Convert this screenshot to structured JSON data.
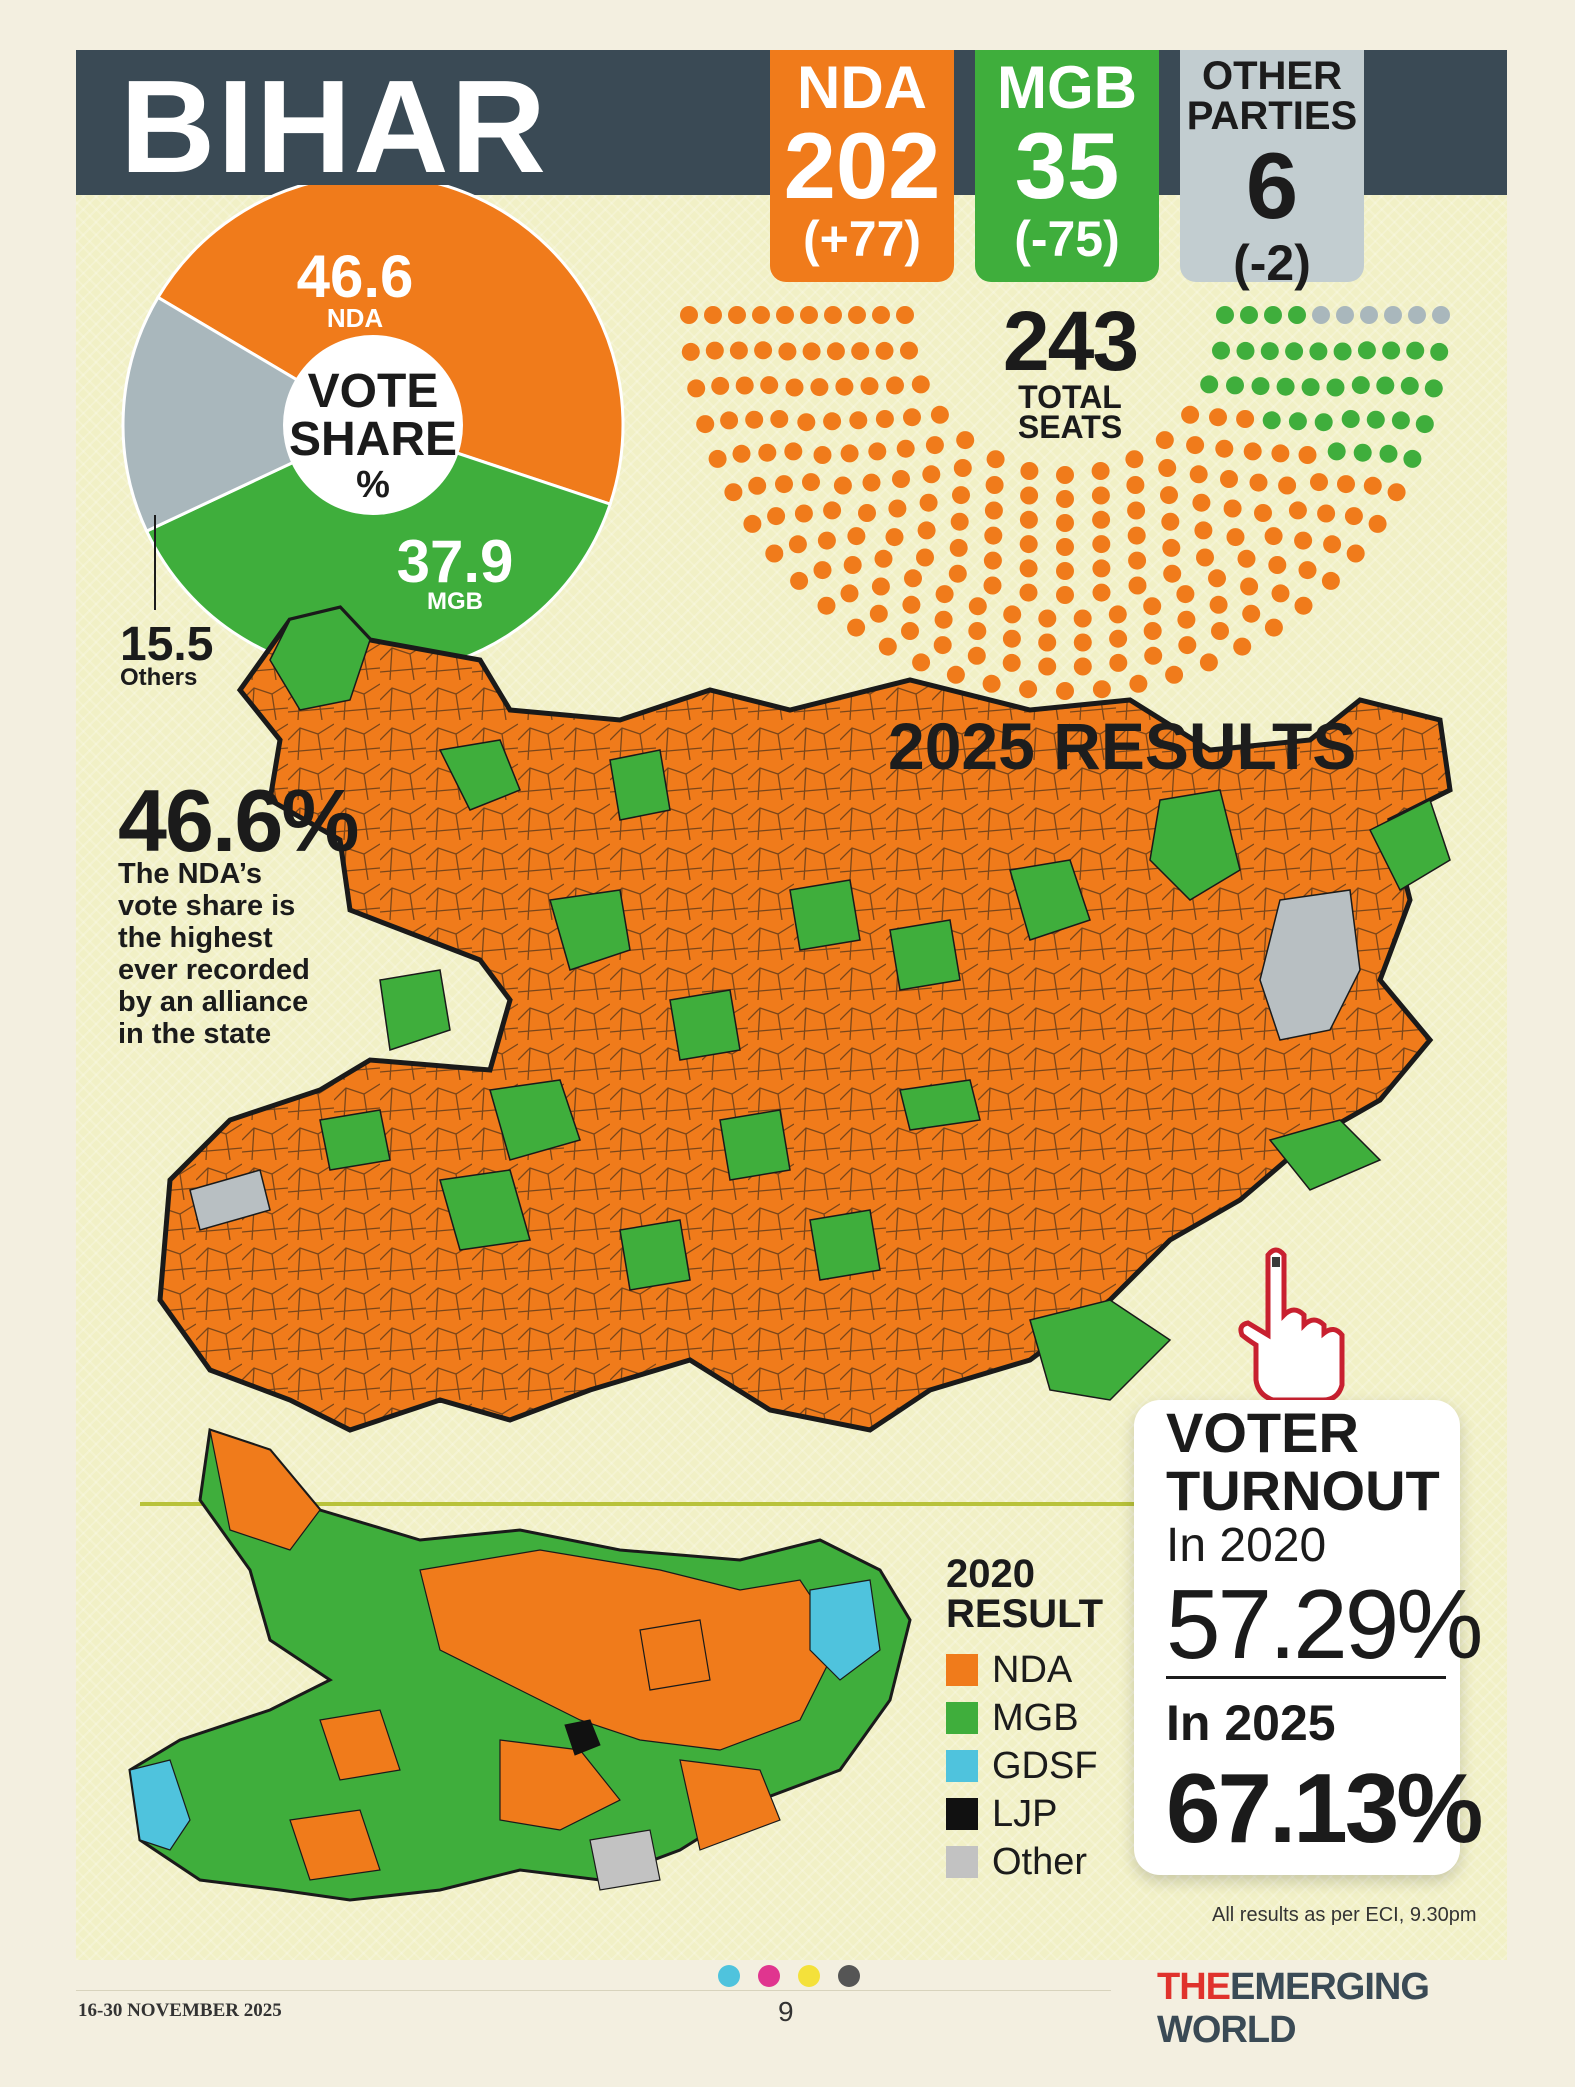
{
  "header": {
    "title": "BIHAR"
  },
  "tallies": [
    {
      "party": "NDA",
      "seats": "202",
      "change": "(+77)",
      "color": "#f07b1b"
    },
    {
      "party": "MGB",
      "seats": "35",
      "change": "(-75)",
      "color": "#3fae3c"
    },
    {
      "party_line1": "OTHER",
      "party_line2": "PARTIES",
      "seats": "6",
      "change": "(-2)",
      "color": "#c2cdd0"
    }
  ],
  "total_seats": {
    "number": "243",
    "label_line1": "TOTAL",
    "label_line2": "SEATS"
  },
  "vote_share": {
    "title_line1": "VOTE",
    "title_line2": "SHARE",
    "title_line3": "%",
    "nda": {
      "value": "46.6",
      "label": "NDA"
    },
    "mgb": {
      "value": "37.9",
      "label": "MGB"
    },
    "others": {
      "value": "15.5",
      "label": "Others"
    }
  },
  "chart_data": {
    "type": "pie",
    "categories": [
      "NDA",
      "MGB",
      "Others"
    ],
    "values": [
      46.6,
      37.9,
      15.5
    ],
    "colors": [
      "#f07b1b",
      "#3fae3c",
      "#a9b7bc"
    ]
  },
  "seat_arc": {
    "nda": 202,
    "mgb": 35,
    "others": 6,
    "colors": {
      "nda": "#f07b1b",
      "mgb": "#3fae3c",
      "others": "#a9b7bc"
    }
  },
  "results_title": "2025 RESULTS",
  "highlight": {
    "value": "46.6%",
    "note_lines": [
      "The NDA’s",
      "vote share is",
      "the highest",
      "ever recorded",
      "by an alliance",
      "in the state"
    ]
  },
  "legend_2020": {
    "title_line1": "2020",
    "title_line2": "RESULT",
    "items": [
      {
        "label": "NDA",
        "color": "#f07b1b"
      },
      {
        "label": "MGB",
        "color": "#3fae3c"
      },
      {
        "label": "GDSF",
        "color": "#4fc3dd"
      },
      {
        "label": "LJP",
        "color": "#111111"
      },
      {
        "label": "Other",
        "color": "#c2c2c2"
      }
    ]
  },
  "turnout": {
    "title_line1": "VOTER",
    "title_line2": "TURNOUT",
    "year1": "In 2020",
    "value1": "57.29%",
    "year2": "In 2025",
    "value2": "67.13%"
  },
  "source_note": "All results as per ECI, 9.30pm",
  "footer": {
    "date": "16-30 NOVEMBER 2025",
    "page": "9",
    "brand_the": "THE",
    "brand_rest": "EMERGING WORLD"
  }
}
